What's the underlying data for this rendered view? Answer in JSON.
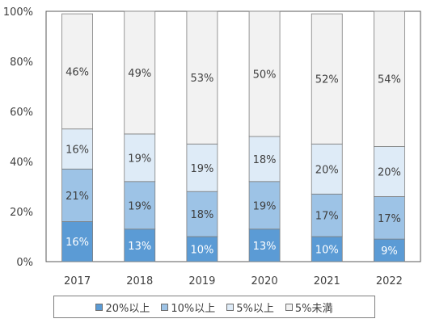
{
  "chart_data": {
    "type": "bar",
    "stacked": true,
    "categories": [
      "2017",
      "2018",
      "2019",
      "2020",
      "2021",
      "2022"
    ],
    "series": [
      {
        "name": "20%以上",
        "values": [
          16,
          13,
          10,
          13,
          10,
          9
        ],
        "color": "#5b9bd5",
        "label_color": "#ffffff"
      },
      {
        "name": "10%以上",
        "values": [
          21,
          19,
          18,
          19,
          17,
          17
        ],
        "color": "#9dc3e6",
        "label_color": "#404040"
      },
      {
        "name": "5%以上",
        "values": [
          16,
          19,
          19,
          18,
          20,
          20
        ],
        "color": "#deebf7",
        "label_color": "#404040"
      },
      {
        "name": "5%未満",
        "values": [
          46,
          49,
          53,
          50,
          52,
          54
        ],
        "color": "#f2f2f2",
        "label_color": "#404040"
      }
    ],
    "data_labels": [
      [
        "16%",
        "13%",
        "10%",
        "13%",
        "10%",
        "9%"
      ],
      [
        "21%",
        "19%",
        "18%",
        "19%",
        "17%",
        "17%"
      ],
      [
        "16%",
        "19%",
        "19%",
        "18%",
        "20%",
        "20%"
      ],
      [
        "46%",
        "49%",
        "53%",
        "50%",
        "52%",
        "54%"
      ]
    ],
    "y_ticks": [
      "0%",
      "20%",
      "40%",
      "60%",
      "80%",
      "100%"
    ],
    "ylim": [
      0,
      100
    ],
    "legend_position": "bottom",
    "grid": false
  },
  "legend": [
    {
      "label": "20%以上",
      "color": "#5b9bd5"
    },
    {
      "label": "10%以上",
      "color": "#9dc3e6"
    },
    {
      "label": "5%以上",
      "color": "#deebf7"
    },
    {
      "label": "5%未満",
      "color": "#f2f2f2"
    }
  ]
}
